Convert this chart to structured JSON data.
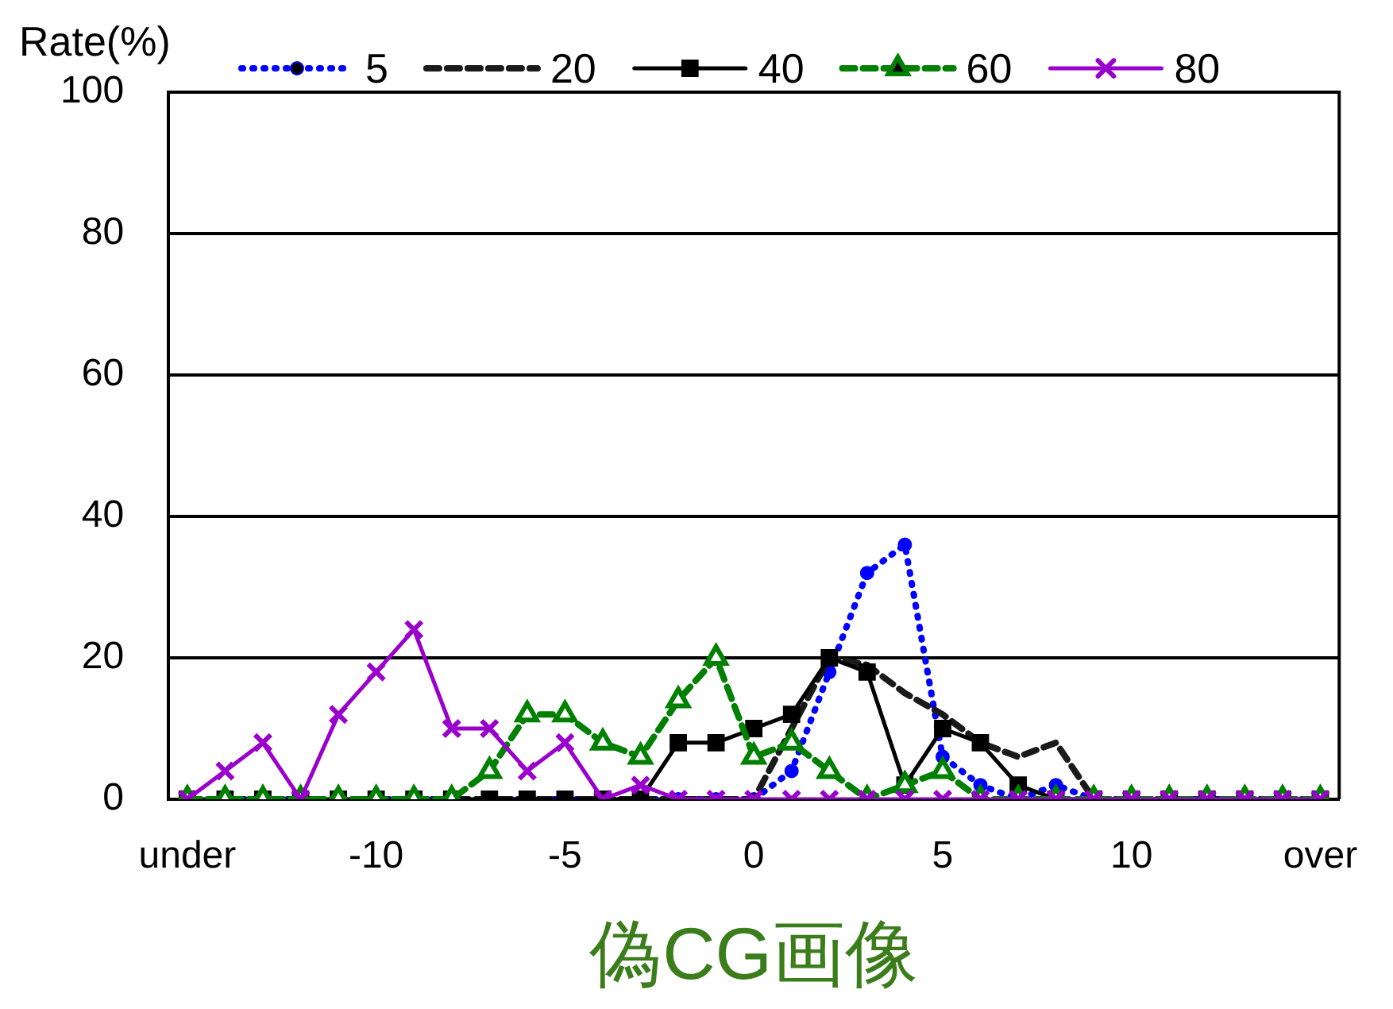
{
  "chart_data": {
    "type": "line",
    "ylabel": "Rate(%)",
    "xlabel": "偽CG画像",
    "categories": [
      "under",
      null,
      null,
      null,
      null,
      "-10",
      null,
      null,
      null,
      null,
      "-5",
      null,
      null,
      null,
      null,
      "0",
      null,
      null,
      null,
      null,
      "5",
      null,
      null,
      null,
      null,
      "10",
      null,
      null,
      null,
      null,
      "over"
    ],
    "series": [
      {
        "name": "5",
        "color": "#0000ff",
        "marker": "circle",
        "line_style": "dotted",
        "values": [
          0,
          0,
          0,
          0,
          0,
          0,
          0,
          0,
          0,
          0,
          0,
          0,
          0,
          0,
          0,
          0,
          4,
          18,
          32,
          36,
          6,
          2,
          0,
          2,
          0,
          0,
          0,
          0,
          0,
          0,
          0
        ]
      },
      {
        "name": "20",
        "color": "#1a1a1a",
        "marker": "none",
        "line_style": "dashed",
        "values": [
          0,
          0,
          0,
          0,
          0,
          0,
          0,
          0,
          0,
          0,
          0,
          0,
          0,
          0,
          0,
          0,
          10,
          20,
          19,
          15,
          12,
          8,
          6,
          8,
          0,
          0,
          0,
          0,
          0,
          0,
          0
        ]
      },
      {
        "name": "40",
        "color": "#000000",
        "marker": "square",
        "line_style": "solid",
        "values": [
          0,
          0,
          0,
          0,
          0,
          0,
          0,
          0,
          0,
          0,
          0,
          0,
          0,
          8,
          8,
          10,
          12,
          20,
          18,
          2,
          10,
          8,
          2,
          0,
          0,
          0,
          0,
          0,
          0,
          0,
          0
        ]
      },
      {
        "name": "60",
        "color": "#008000",
        "marker": "triangle",
        "line_style": "dashed",
        "values": [
          0,
          0,
          0,
          0,
          0,
          0,
          0,
          0,
          4,
          12,
          12,
          8,
          6,
          14,
          20,
          6,
          8,
          4,
          0,
          2,
          4,
          0,
          0,
          0,
          0,
          0,
          0,
          0,
          0,
          0,
          0
        ]
      },
      {
        "name": "80",
        "color": "#9900cc",
        "marker": "cross",
        "line_style": "solid",
        "values": [
          0,
          4,
          8,
          0,
          12,
          18,
          24,
          10,
          10,
          4,
          8,
          0,
          2,
          0,
          0,
          0,
          0,
          0,
          0,
          0,
          0,
          0,
          0,
          0,
          0,
          0,
          0,
          0,
          0,
          0,
          0
        ]
      }
    ],
    "ylim": [
      0,
      100
    ],
    "yticks": [
      0,
      20,
      40,
      60,
      80,
      100
    ],
    "grid": "y",
    "legend": "top"
  }
}
